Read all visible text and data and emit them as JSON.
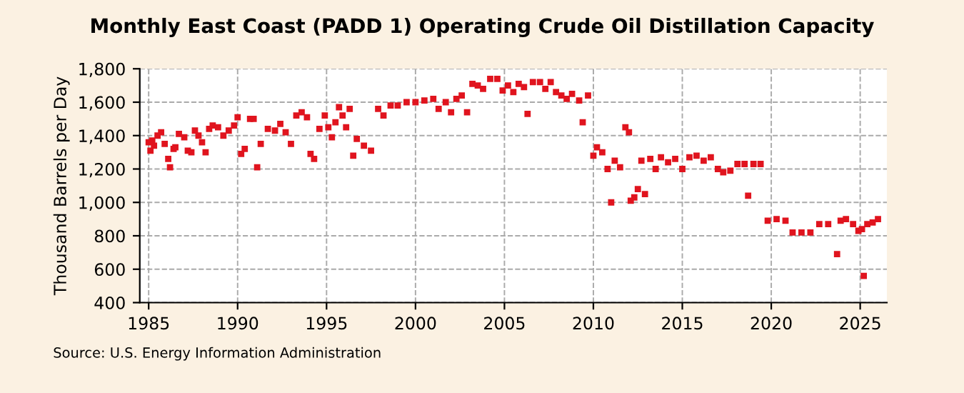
{
  "chart_data": {
    "type": "scatter",
    "title": "Monthly East Coast (PADD 1) Operating Crude Oil Distillation Capacity",
    "ylabel": "Thousand Barrels per Day",
    "annotations": [
      "Source: U.S. Energy Information Administration"
    ],
    "marker": "square",
    "grid": true,
    "xlim": [
      1984.5,
      2026.5
    ],
    "xticks": [
      1985,
      1990,
      1995,
      2000,
      2005,
      2010,
      2015,
      2020,
      2025
    ],
    "ylim": [
      400,
      1800
    ],
    "yticks": [
      {
        "value": 400,
        "label": "400"
      },
      {
        "value": 600,
        "label": "600"
      },
      {
        "value": 800,
        "label": "800"
      },
      {
        "value": 1000,
        "label": "1,000"
      },
      {
        "value": 1200,
        "label": "1,200"
      },
      {
        "value": 1400,
        "label": "1,400"
      },
      {
        "value": 1600,
        "label": "1,600"
      },
      {
        "value": 1800,
        "label": "1,800"
      }
    ],
    "series": [
      {
        "color": "#e0141e",
        "x": [
          1985.0,
          1985.1,
          1985.2,
          1985.3,
          1985.5,
          1985.7,
          1985.9,
          1986.1,
          1986.2,
          1986.4,
          1986.5,
          1986.7,
          1987.0,
          1987.2,
          1987.4,
          1987.6,
          1987.8,
          1988.0,
          1988.2,
          1988.4,
          1988.6,
          1988.9,
          1989.2,
          1989.5,
          1989.8,
          1990.0,
          1990.2,
          1990.4,
          1990.7,
          1990.9,
          1991.1,
          1991.3,
          1991.7,
          1992.1,
          1992.4,
          1992.7,
          1993.0,
          1993.3,
          1993.6,
          1993.9,
          1994.1,
          1994.3,
          1994.6,
          1994.9,
          1995.1,
          1995.3,
          1995.5,
          1995.7,
          1995.9,
          1996.1,
          1996.3,
          1996.5,
          1996.7,
          1997.1,
          1997.5,
          1997.9,
          1998.2,
          1998.6,
          1999.0,
          1999.5,
          2000.0,
          2000.5,
          2001.0,
          2001.3,
          2001.7,
          2002.0,
          2002.3,
          2002.6,
          2002.9,
          2003.2,
          2003.5,
          2003.8,
          2004.2,
          2004.6,
          2004.9,
          2005.2,
          2005.5,
          2005.8,
          2006.1,
          2006.3,
          2006.6,
          2007.0,
          2007.3,
          2007.6,
          2007.9,
          2008.2,
          2008.5,
          2008.8,
          2009.2,
          2009.4,
          2009.7,
          2010.0,
          2010.2,
          2010.5,
          2010.8,
          2011.0,
          2011.2,
          2011.5,
          2011.8,
          2012.0,
          2012.1,
          2012.3,
          2012.5,
          2012.7,
          2012.9,
          2013.2,
          2013.5,
          2013.8,
          2014.2,
          2014.6,
          2015.0,
          2015.4,
          2015.8,
          2016.2,
          2016.6,
          2017.0,
          2017.3,
          2017.7,
          2018.1,
          2018.5,
          2018.7,
          2019.0,
          2019.4,
          2019.8,
          2020.3,
          2020.8,
          2021.2,
          2021.7,
          2022.2,
          2022.7,
          2023.2,
          2023.7,
          2023.9,
          2024.2,
          2024.6,
          2024.9,
          2025.1,
          2025.2,
          2025.4,
          2025.7,
          2026.0
        ],
        "values": [
          1360,
          1310,
          1370,
          1340,
          1400,
          1420,
          1350,
          1260,
          1210,
          1320,
          1330,
          1410,
          1390,
          1310,
          1300,
          1430,
          1400,
          1360,
          1300,
          1440,
          1460,
          1450,
          1400,
          1430,
          1460,
          1510,
          1290,
          1320,
          1500,
          1500,
          1210,
          1350,
          1440,
          1430,
          1470,
          1420,
          1350,
          1520,
          1540,
          1510,
          1290,
          1260,
          1440,
          1520,
          1450,
          1390,
          1480,
          1570,
          1520,
          1450,
          1560,
          1280,
          1380,
          1340,
          1310,
          1560,
          1520,
          1580,
          1580,
          1600,
          1600,
          1610,
          1620,
          1560,
          1600,
          1540,
          1620,
          1640,
          1540,
          1710,
          1700,
          1680,
          1740,
          1740,
          1670,
          1700,
          1660,
          1710,
          1690,
          1530,
          1720,
          1720,
          1680,
          1720,
          1660,
          1640,
          1620,
          1650,
          1610,
          1480,
          1640,
          1280,
          1330,
          1300,
          1200,
          1000,
          1250,
          1210,
          1450,
          1420,
          1010,
          1030,
          1080,
          1250,
          1050,
          1260,
          1200,
          1270,
          1240,
          1260,
          1200,
          1270,
          1280,
          1250,
          1270,
          1200,
          1180,
          1190,
          1230,
          1230,
          1040,
          1230,
          1230,
          890,
          900,
          890,
          820,
          820,
          820,
          870,
          870,
          690,
          890,
          900,
          870,
          830,
          840,
          560,
          870,
          880,
          900
        ]
      }
    ]
  }
}
